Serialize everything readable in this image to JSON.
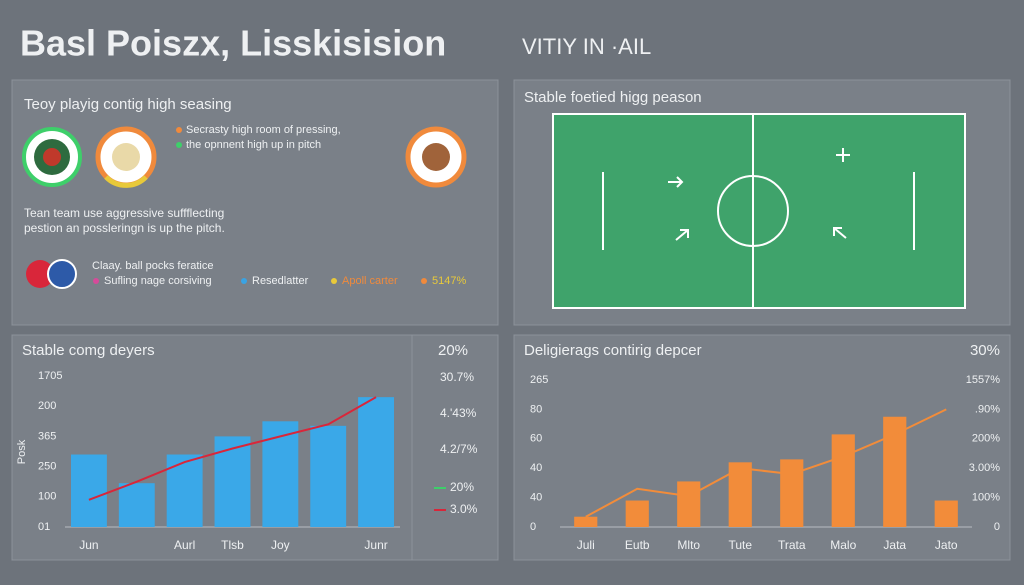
{
  "header": {
    "title": "Basl Poiszx, Lisskisision",
    "subtitle": "VITIY IN ·AIL"
  },
  "panel_tactics": {
    "heading": "Teoy playig contig high seasing",
    "notes": [
      "Secrasty high room of pressing,",
      "the opnnent high up in pitch"
    ],
    "description": [
      "Tean team use aggressive suffflecting",
      "pestion an possleringn is up the pitch."
    ],
    "legend_title": "Claay. ball pocks feratice",
    "legend": [
      {
        "label": "Sufling nage corsiving",
        "color": "#d64b9a"
      },
      {
        "label": "Resedlatter",
        "color": "#3aa3e3"
      },
      {
        "label": "Apoll carter",
        "color": "#e8c93a"
      },
      {
        "label": "5147%",
        "color": "#f08a3c"
      }
    ]
  },
  "panel_pitch": {
    "heading": "Stable foetied higg peason"
  },
  "chart_data": [
    {
      "type": "bar",
      "title": "Stable comg deyers",
      "y_label": "Posk",
      "categories": [
        "Jun",
        null,
        "Aurl",
        "Tlsb",
        "Joy",
        null,
        "Junr"
      ],
      "axis_labels": [
        "1705",
        "200",
        "365",
        "250",
        "100",
        "01"
      ],
      "ylim": [
        0,
        100
      ],
      "series": [
        {
          "color": "#3aa8e8",
          "values": [
            48,
            29,
            48,
            60,
            70,
            67,
            86
          ]
        },
        {
          "type": "line",
          "color": "#d9263a",
          "values": [
            18,
            30,
            43,
            52,
            60,
            68,
            86
          ]
        }
      ]
    },
    {
      "type": "bar",
      "title": "Deligierags contirig depcer",
      "corner_label": "30%",
      "categories": [
        "Juli",
        "Eutb",
        "Mlto",
        "Tute",
        "Trata",
        "Malo",
        "Jata",
        "Jato"
      ],
      "axis_labels": [
        "265",
        "80",
        "60",
        "40",
        "40",
        "0"
      ],
      "right_labels": [
        "1557%",
        ".90%",
        "200%",
        "3.00%",
        "100%",
        "0"
      ],
      "ylim": [
        0,
        100
      ],
      "series": [
        {
          "color": "#f28c3a",
          "values": [
            7,
            18,
            31,
            44,
            46,
            63,
            75,
            18
          ]
        },
        {
          "type": "line",
          "color": "#f28c3a",
          "values": [
            7,
            26,
            21,
            40,
            36,
            48,
            63,
            80
          ]
        }
      ]
    }
  ],
  "side_stats": {
    "title": "20%",
    "values": [
      "30.7%",
      "4.'43%",
      "4.2/7%"
    ],
    "legend": [
      {
        "label": "20%",
        "color": "#3ecf6a"
      },
      {
        "label": "3.0%",
        "color": "#d9263a"
      }
    ]
  }
}
